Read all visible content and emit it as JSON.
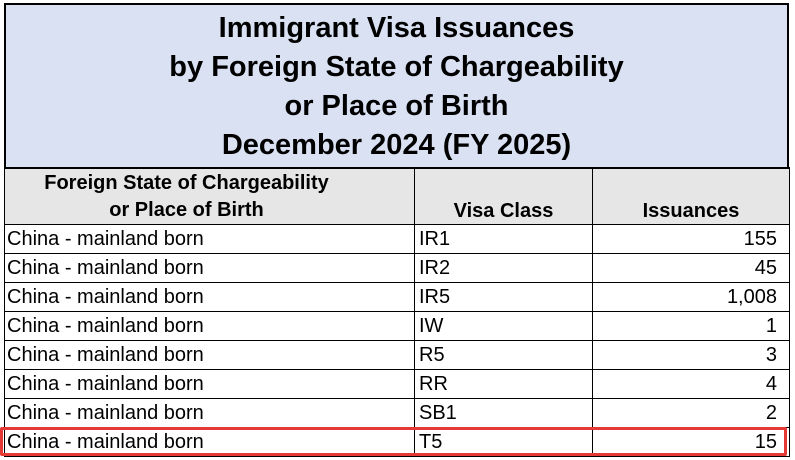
{
  "title": {
    "line1": "Immigrant Visa Issuances",
    "line2": "by Foreign State of Chargeability",
    "line3": "or Place of Birth",
    "line4": "December 2024 (FY 2025)"
  },
  "columns": {
    "country_line1": "Foreign State of Chargeability",
    "country_line2": "or Place of Birth",
    "visa_class": "Visa Class",
    "issuances": "Issuances"
  },
  "rows": [
    {
      "country": "China - mainland born",
      "visa_class": "IR1",
      "issuances": "155"
    },
    {
      "country": "China - mainland born",
      "visa_class": "IR2",
      "issuances": "45"
    },
    {
      "country": "China - mainland born",
      "visa_class": "IR5",
      "issuances": "1,008"
    },
    {
      "country": "China - mainland born",
      "visa_class": "IW",
      "issuances": "1"
    },
    {
      "country": "China - mainland born",
      "visa_class": "R5",
      "issuances": "3"
    },
    {
      "country": "China - mainland born",
      "visa_class": "RR",
      "issuances": "4"
    },
    {
      "country": "China - mainland born",
      "visa_class": "SB1",
      "issuances": "2"
    },
    {
      "country": "China - mainland born",
      "visa_class": "T5",
      "issuances": "15"
    }
  ],
  "highlight_color": "#e53935",
  "title_background": "#d9e1f2",
  "header_background": "#e7e6e6"
}
